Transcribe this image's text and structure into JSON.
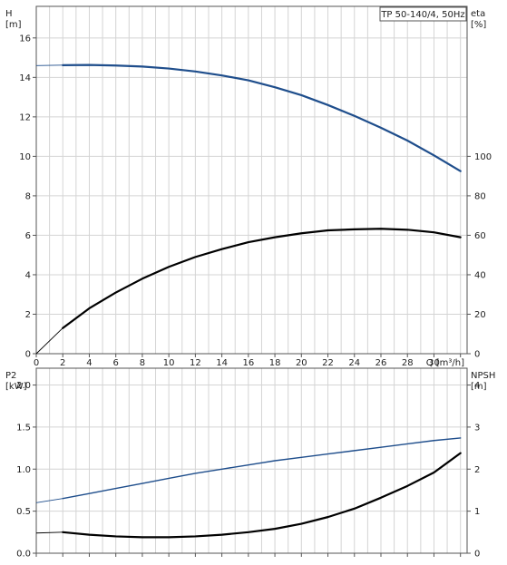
{
  "chart_data": [
    {
      "type": "line",
      "title": "TP 50-140/4, 50Hz",
      "xlabel": "Q [m³/h]",
      "xlim": [
        0,
        32.5
      ],
      "x_ticks": [
        "0",
        "2",
        "4",
        "6",
        "8",
        "10",
        "12",
        "14",
        "16",
        "18",
        "20",
        "22",
        "24",
        "26",
        "28",
        "30"
      ],
      "ylabel_left": [
        "H",
        "[m]"
      ],
      "ylim_left": [
        0,
        17.6
      ],
      "y_ticks_left": [
        "0",
        "2",
        "4",
        "6",
        "8",
        "10",
        "12",
        "14",
        "16"
      ],
      "ylabel_right": [
        "eta",
        "[%]"
      ],
      "ylim_right": [
        0,
        176
      ],
      "y_ticks_right": [
        "0",
        "20",
        "40",
        "60",
        "80",
        "100"
      ],
      "grid": true,
      "series": [
        {
          "axis": "left",
          "color": "#1f4e8c",
          "x": [
            0,
            2,
            4,
            6,
            8,
            10,
            12,
            14,
            16,
            18,
            20,
            22,
            24,
            26,
            28,
            30,
            32
          ],
          "values": [
            14.6,
            14.62,
            14.63,
            14.6,
            14.55,
            14.45,
            14.3,
            14.1,
            13.85,
            13.5,
            13.1,
            12.6,
            12.05,
            11.45,
            10.8,
            10.05,
            9.25
          ]
        },
        {
          "axis": "right",
          "color": "#000000",
          "x": [
            0,
            2,
            4,
            6,
            8,
            10,
            12,
            14,
            16,
            18,
            20,
            22,
            24,
            26,
            28,
            30,
            32
          ],
          "values": [
            0,
            13,
            23,
            31,
            38,
            44,
            49,
            53,
            56.5,
            59,
            61,
            62.5,
            63,
            63.3,
            62.8,
            61.5,
            59
          ]
        }
      ]
    },
    {
      "type": "line",
      "xlim": [
        0,
        32.5
      ],
      "ylabel_left": [
        "P2",
        "[kW]"
      ],
      "ylim_left": [
        0,
        2.2
      ],
      "y_ticks_left": [
        "0.0",
        "0.5",
        "1.0",
        "1.5",
        "2.0"
      ],
      "ylabel_right": [
        "NPSH",
        "[m]"
      ],
      "ylim_right": [
        0,
        4.4
      ],
      "y_ticks_right": [
        "0",
        "1",
        "2",
        "3",
        "4"
      ],
      "grid": true,
      "series": [
        {
          "axis": "left",
          "color": "#1f4e8c",
          "x": [
            0,
            2,
            4,
            6,
            8,
            10,
            12,
            14,
            16,
            18,
            20,
            22,
            24,
            26,
            28,
            30,
            32
          ],
          "values": [
            0.6,
            0.65,
            0.71,
            0.77,
            0.83,
            0.89,
            0.95,
            1.0,
            1.05,
            1.1,
            1.14,
            1.18,
            1.22,
            1.26,
            1.3,
            1.34,
            1.37
          ]
        },
        {
          "axis": "right",
          "color": "#000000",
          "x": [
            0,
            2,
            4,
            6,
            8,
            10,
            12,
            14,
            16,
            18,
            20,
            22,
            24,
            26,
            28,
            30,
            32
          ],
          "values": [
            0.48,
            0.5,
            0.44,
            0.4,
            0.38,
            0.38,
            0.4,
            0.44,
            0.5,
            0.58,
            0.7,
            0.86,
            1.06,
            1.32,
            1.6,
            1.92,
            2.38
          ]
        }
      ]
    }
  ]
}
